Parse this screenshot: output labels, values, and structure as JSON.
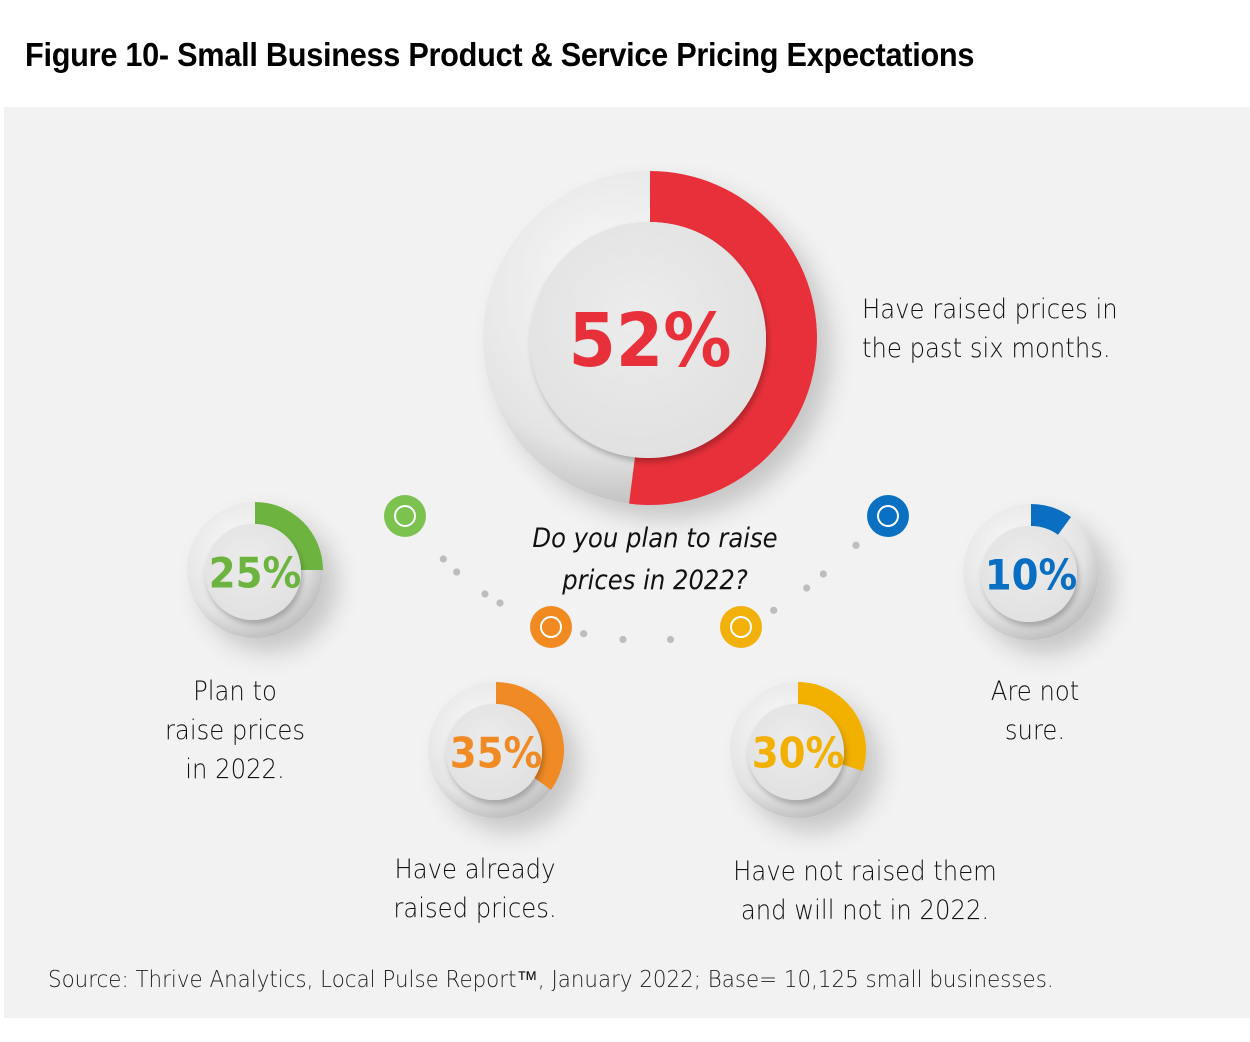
{
  "title": "Figure 10- Small Business Product & Service Pricing Expectations",
  "chart_data": {
    "type": "donut",
    "question": "Do you plan to raise prices in 2022?",
    "items": [
      {
        "id": "raised-six-months",
        "value": 52,
        "label": "52%",
        "caption": [
          "Have raised prices in",
          "the past six months."
        ],
        "color": "#e8303a"
      },
      {
        "id": "plan-to-raise",
        "value": 25,
        "label": "25%",
        "caption": [
          "Plan to",
          "raise prices",
          "in 2022."
        ],
        "color": "#6db33f"
      },
      {
        "id": "already-raised",
        "value": 35,
        "label": "35%",
        "caption": [
          "Have already",
          "raised prices."
        ],
        "color": "#f08a24"
      },
      {
        "id": "not-raised",
        "value": 30,
        "label": "30%",
        "caption": [
          "Have not raised them",
          "and will not in 2022."
        ],
        "color": "#f2b000"
      },
      {
        "id": "not-sure",
        "value": 10,
        "label": "10%",
        "caption": [
          "Are not",
          "sure."
        ],
        "color": "#0a6fc2"
      }
    ],
    "connector_colors": [
      "#7cc24f",
      "#f28a22",
      "#f2b10a",
      "#0a70c2"
    ]
  },
  "source": "Source: Thrive Analytics, Local Pulse Report™, January 2022; Base= 10,125 small businesses."
}
